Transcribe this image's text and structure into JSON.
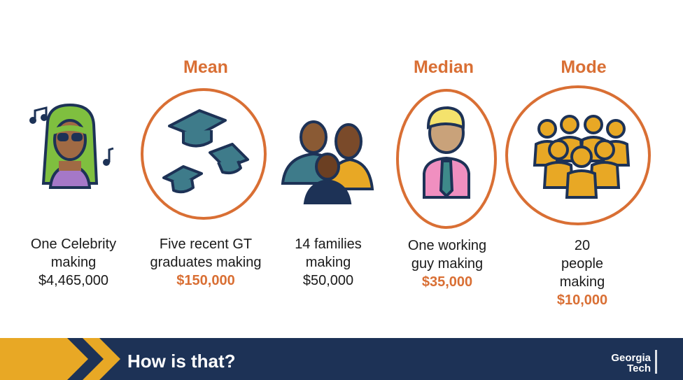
{
  "headings": {
    "mean": "Mean",
    "median": "Median",
    "mode": "Mode"
  },
  "groups": [
    {
      "lines": [
        "One Celebrity",
        "making"
      ],
      "amount": "$4,465,000",
      "icon": "celebrity-icon"
    },
    {
      "lines": [
        "Five recent GT",
        "graduates making"
      ],
      "amount": "$150,000",
      "icon": "graduation-caps-icon"
    },
    {
      "lines": [
        "14 families",
        "making"
      ],
      "amount": "$50,000",
      "icon": "family-icon"
    },
    {
      "lines": [
        "One working",
        "guy making"
      ],
      "amount": "$35,000",
      "icon": "working-guy-icon"
    },
    {
      "lines": [
        "20",
        "people",
        "making"
      ],
      "amount": "$10,000",
      "icon": "crowd-icon"
    }
  ],
  "footer": {
    "title": "How is that?",
    "logo_line1": "Georgia",
    "logo_line2": "Tech"
  },
  "colors": {
    "accent": "#d96f34",
    "navy": "#1d3256",
    "gold": "#e8a825"
  }
}
